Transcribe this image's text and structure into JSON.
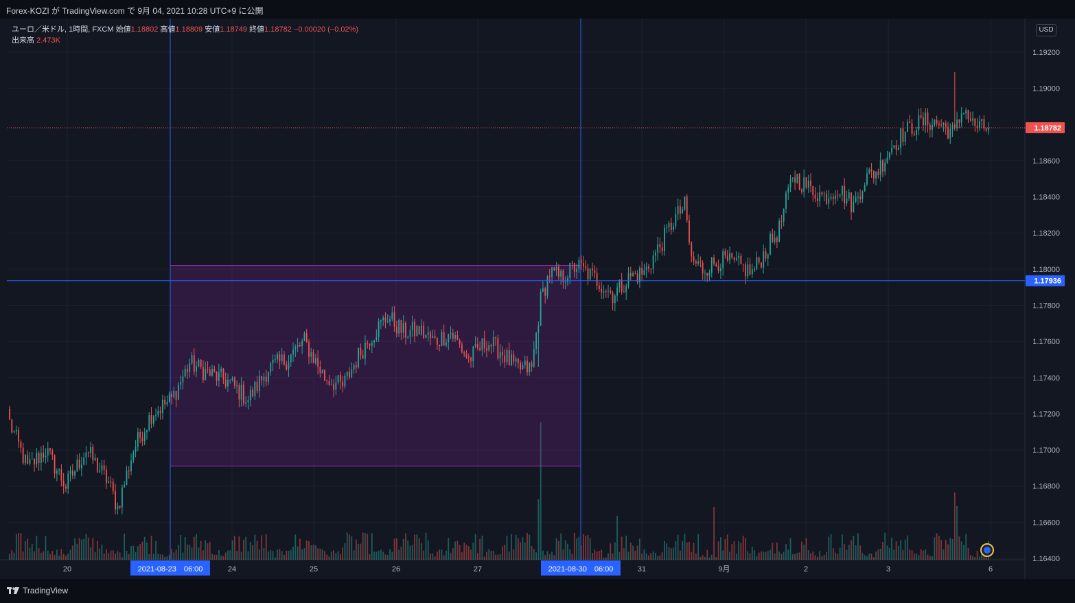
{
  "header": {
    "publish_text": "Forex-KOZI が TradingView.com で 9月 04, 2021 10:28 UTC+9 に公開"
  },
  "legend": {
    "symbol": "ユーロ／米ドル, 1時間, FXCM",
    "open_label": "始値",
    "open_value": "1.18802",
    "high_label": "高値",
    "high_value": "1.18809",
    "low_label": "安値",
    "low_value": "1.18749",
    "close_label": "終値",
    "close_value": "1.18782",
    "change": "−0.00020 (−0.02%)",
    "volume_label": "出来高",
    "volume_value": "2.473K"
  },
  "currency_button": "USD",
  "footer": {
    "brand": "TradingView"
  },
  "colors": {
    "background": "#131722",
    "grid": "#1e222d",
    "up": "#26a69a",
    "down": "#ef5350",
    "blue_line": "#2962ff",
    "box_border": "#9c27b0",
    "box_fill": "rgba(156,39,176,0.2)"
  },
  "chart_data": {
    "type": "candlestick",
    "symbol": "EURUSD",
    "timeframe": "1h",
    "ylim": [
      1.164,
      1.1935
    ],
    "y_ticks": [
      "1.19200",
      "1.19000",
      "1.18600",
      "1.18400",
      "1.18200",
      "1.18000",
      "1.17800",
      "1.17600",
      "1.17400",
      "1.17200",
      "1.17000",
      "1.16800",
      "1.16600",
      "1.16400"
    ],
    "x_ticks": [
      "20",
      "24",
      "25",
      "26",
      "27",
      "31",
      "9月",
      "2",
      "3",
      "6"
    ],
    "date_labels": [
      "2021-08-23　06:00",
      "2021-08-30　06:00"
    ],
    "last_price": "1.18782",
    "horizontal_line": "1.17936",
    "box": {
      "price_high": 1.1802,
      "price_low": 1.1691,
      "from": "2021-08-23 06:00",
      "to": "2021-08-30 06:00"
    },
    "anchors": [
      [
        0,
        1.1715
      ],
      [
        8,
        1.169
      ],
      [
        16,
        1.17
      ],
      [
        25,
        1.168
      ],
      [
        34,
        1.17
      ],
      [
        44,
        1.1682
      ],
      [
        48,
        1.1668
      ],
      [
        55,
        1.17
      ],
      [
        63,
        1.172
      ],
      [
        72,
        1.1728
      ],
      [
        80,
        1.1748
      ],
      [
        89,
        1.1742
      ],
      [
        97,
        1.1738
      ],
      [
        106,
        1.1728
      ],
      [
        115,
        1.1745
      ],
      [
        123,
        1.175
      ],
      [
        131,
        1.176
      ],
      [
        140,
        1.174
      ],
      [
        148,
        1.1735
      ],
      [
        155,
        1.1752
      ],
      [
        160,
        1.1762
      ],
      [
        168,
        1.1774
      ],
      [
        175,
        1.1765
      ],
      [
        182,
        1.1766
      ],
      [
        189,
        1.176
      ],
      [
        196,
        1.1765
      ],
      [
        204,
        1.175
      ],
      [
        212,
        1.176
      ],
      [
        218,
        1.1755
      ],
      [
        225,
        1.1745
      ],
      [
        232,
        1.1745
      ],
      [
        236,
        1.1783
      ],
      [
        240,
        1.1798
      ],
      [
        245,
        1.1795
      ],
      [
        252,
        1.1802
      ],
      [
        260,
        1.1795
      ],
      [
        268,
        1.1786
      ],
      [
        276,
        1.1796
      ],
      [
        282,
        1.1798
      ],
      [
        290,
        1.1815
      ],
      [
        295,
        1.1827
      ],
      [
        300,
        1.1835
      ],
      [
        303,
        1.1805
      ],
      [
        308,
        1.18
      ],
      [
        316,
        1.1805
      ],
      [
        324,
        1.1802
      ],
      [
        330,
        1.1798
      ],
      [
        336,
        1.181
      ],
      [
        342,
        1.1822
      ],
      [
        348,
        1.1852
      ],
      [
        355,
        1.1845
      ],
      [
        362,
        1.184
      ],
      [
        368,
        1.1845
      ],
      [
        375,
        1.1835
      ],
      [
        380,
        1.185
      ],
      [
        386,
        1.1855
      ],
      [
        392,
        1.1868
      ],
      [
        397,
        1.1875
      ],
      [
        403,
        1.188
      ],
      [
        408,
        1.1882
      ],
      [
        414,
        1.188
      ],
      [
        420,
        1.1875
      ],
      [
        424,
        1.189
      ],
      [
        428,
        1.188
      ],
      [
        432,
        1.1878
      ]
    ],
    "volume_axis_label": "出来高"
  }
}
